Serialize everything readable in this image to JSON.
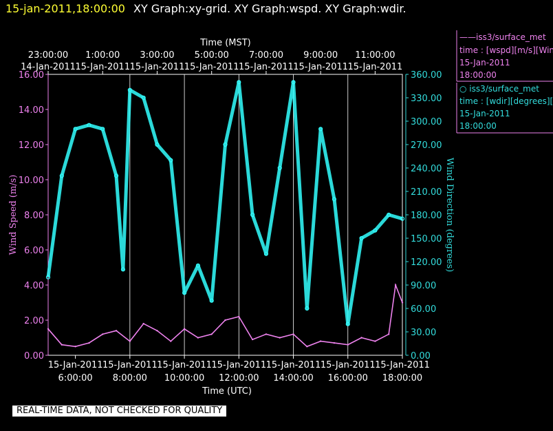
{
  "title": {
    "date": "15-jan-2011,18:00:00",
    "graphs": "XY Graph:xy-grid.  XY Graph:wspd.  XY Graph:wdir."
  },
  "top_axis": {
    "label": "Time (MST)",
    "ticks": [
      {
        "time": "23:00:00",
        "date": "14-Jan-2011"
      },
      {
        "time": "1:00:00",
        "date": "15-Jan-2011"
      },
      {
        "time": "3:00:00",
        "date": "15-Jan-2011"
      },
      {
        "time": "5:00:00",
        "date": "15-Jan-2011"
      },
      {
        "time": "7:00:00",
        "date": "15-Jan-2011"
      },
      {
        "time": "9:00:00",
        "date": "15-Jan-2011"
      },
      {
        "time": "11:00:00",
        "date": "15-Jan-2011"
      }
    ]
  },
  "bottom_axis": {
    "label": "Time (UTC)",
    "ticks": [
      {
        "date": "15-Jan-2011",
        "time": "6:00:00"
      },
      {
        "date": "15-Jan-2011",
        "time": "8:00:00"
      },
      {
        "date": "15-Jan-2011",
        "time": "10:00:00"
      },
      {
        "date": "15-Jan-2011",
        "time": "12:00:00"
      },
      {
        "date": "15-Jan-2011",
        "time": "14:00:00"
      },
      {
        "date": "15-Jan-2011",
        "time": "16:00:00"
      },
      {
        "date": "15-Jan-2011",
        "time": "18:00:00"
      }
    ]
  },
  "left_axis": {
    "label": "Wind Speed (m/s)",
    "ticks": [
      "0.00",
      "2.00",
      "4.00",
      "6.00",
      "8.00",
      "10.00",
      "12.00",
      "14.00",
      "16.00"
    ]
  },
  "right_axis": {
    "label": "Wind Direction (degrees)",
    "ticks": [
      "0.00",
      "30.00",
      "60.00",
      "90.00",
      "120.00",
      "150.00",
      "180.00",
      "210.00",
      "240.00",
      "270.00",
      "300.00",
      "330.00",
      "360.00"
    ]
  },
  "legend": [
    {
      "line1": "——iss3/surface_met",
      "line2": "time : [wspd][m/s][Wind",
      "line3": "15-Jan-2011",
      "line4": "18:00:00",
      "color": "#ee82ee"
    },
    {
      "line1": "○  iss3/surface_met",
      "line2": "time : [wdir][degrees][W",
      "line3": "15-Jan-2011",
      "line4": "18:00:00",
      "color": "#33dddd"
    }
  ],
  "qc_note": "REAL-TIME DATA, NOT CHECKED FOR QUALITY",
  "colors": {
    "wspd": "#ee82ee",
    "wdir": "#33ffff",
    "grid": "#ffffff",
    "axis_pink": "#ee82ee",
    "axis_cyan": "#33dddd"
  },
  "chart_data": {
    "type": "line",
    "x_label": "Time (UTC)",
    "x_range": [
      "2011-01-15 05:00",
      "2011-01-15 18:00"
    ],
    "ylim_left": [
      0,
      16
    ],
    "ylim_right": [
      0,
      360
    ],
    "grid": true,
    "legend_position": "right",
    "series": [
      {
        "name": "iss3/surface_met time : [wspd][m/s][Wind",
        "axis": "left",
        "style": "line",
        "x": [
          "05:00",
          "05:30",
          "06:00",
          "06:30",
          "07:00",
          "07:30",
          "08:00",
          "08:30",
          "09:00",
          "09:30",
          "10:00",
          "10:30",
          "11:00",
          "11:30",
          "12:00",
          "12:30",
          "13:00",
          "13:30",
          "14:00",
          "14:30",
          "15:00",
          "15:30",
          "16:00",
          "16:30",
          "17:00",
          "17:30",
          "17:45",
          "18:00"
        ],
        "values": [
          1.5,
          0.6,
          0.5,
          0.7,
          1.2,
          1.4,
          0.8,
          1.8,
          1.4,
          0.8,
          1.5,
          1.0,
          1.2,
          2.0,
          2.2,
          0.9,
          1.2,
          1.0,
          1.2,
          0.5,
          0.8,
          0.7,
          0.6,
          1.0,
          0.8,
          1.2,
          4.0,
          3.0
        ]
      },
      {
        "name": "iss3/surface_met time : [wdir][degrees][W",
        "axis": "right",
        "style": "scatter",
        "x": [
          "05:00",
          "05:30",
          "06:00",
          "06:30",
          "07:00",
          "07:30",
          "07:45",
          "08:00",
          "08:30",
          "09:00",
          "09:30",
          "10:00",
          "10:30",
          "11:00",
          "11:30",
          "12:00",
          "12:30",
          "13:00",
          "13:30",
          "14:00",
          "14:30",
          "15:00",
          "15:30",
          "16:00",
          "16:30",
          "17:00",
          "17:30",
          "18:00"
        ],
        "values": [
          100,
          230,
          290,
          295,
          290,
          230,
          110,
          340,
          330,
          270,
          250,
          80,
          115,
          70,
          270,
          350,
          180,
          130,
          240,
          350,
          60,
          290,
          200,
          40,
          150,
          160,
          180,
          175
        ]
      }
    ]
  }
}
